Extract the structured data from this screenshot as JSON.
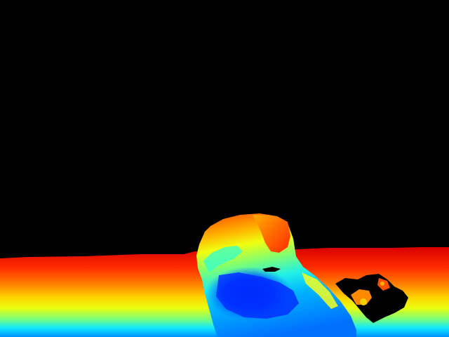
{
  "image": {
    "kind": "depth-map",
    "colormap": "jet",
    "background_color": "#000000",
    "palette": {
      "near": "#0000ff",
      "cyan": "#00ffff",
      "yellow": "#ffff00",
      "orange": "#ff7f00",
      "far": "#ff0000"
    },
    "regions": [
      "no-depth-background",
      "floor-gradient",
      "foreground-object",
      "small-object-right"
    ]
  }
}
